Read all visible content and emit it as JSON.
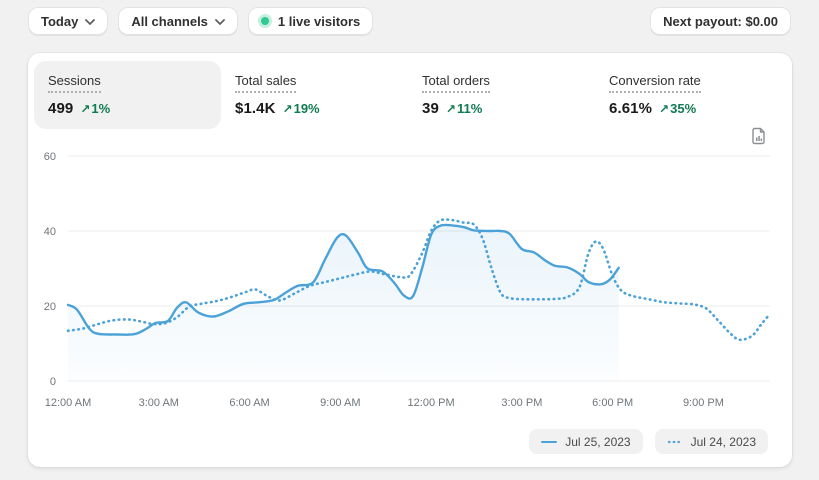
{
  "topbar": {
    "date_range_label": "Today",
    "channels_label": "All channels",
    "live_visitors_label": "1 live visitors",
    "live_dot_color": "#2fc991",
    "next_payout_label": "Next payout: $0.00"
  },
  "metrics": [
    {
      "label": "Sessions",
      "value": "499",
      "arrow": "↗",
      "delta": "1%",
      "selected": true
    },
    {
      "label": "Total sales",
      "value": "$1.4K",
      "arrow": "↗",
      "delta": "19%",
      "selected": false
    },
    {
      "label": "Total orders",
      "value": "39",
      "arrow": "↗",
      "delta": "11%",
      "selected": false
    },
    {
      "label": "Conversion rate",
      "value": "6.61%",
      "arrow": "↗",
      "delta": "35%",
      "selected": false
    }
  ],
  "colors": {
    "positive_delta": "#107a52",
    "line_blue": "#4ba2d8",
    "grid": "#ececec",
    "axis_text": "#70757a"
  },
  "chart_data": {
    "type": "line",
    "x_unit": "hour_of_day",
    "xlim": [
      0,
      23.2
    ],
    "ylim": [
      0,
      60
    ],
    "grid": true,
    "yticks": [
      {
        "value": 0,
        "label": "0"
      },
      {
        "value": 20,
        "label": "20"
      },
      {
        "value": 40,
        "label": "40"
      },
      {
        "value": 60,
        "label": "60"
      }
    ],
    "xticks": [
      {
        "hour": 0,
        "label": "12:00 AM"
      },
      {
        "hour": 3,
        "label": "3:00 AM"
      },
      {
        "hour": 6,
        "label": "6:00 AM"
      },
      {
        "hour": 9,
        "label": "9:00 AM"
      },
      {
        "hour": 12,
        "label": "12:00 PM"
      },
      {
        "hour": 15,
        "label": "3:00 PM"
      },
      {
        "hour": 18,
        "label": "6:00 PM"
      },
      {
        "hour": 21,
        "label": "9:00 PM"
      }
    ],
    "legend_position": "bottom-right",
    "series": [
      {
        "name": "Jul 25, 2023",
        "style": "solid",
        "color": "#4ba2d8",
        "area_fill": true,
        "points": [
          [
            0,
            20.3
          ],
          [
            0.3,
            19
          ],
          [
            0.7,
            14
          ],
          [
            1.0,
            12.6
          ],
          [
            1.6,
            12.4
          ],
          [
            2.2,
            12.5
          ],
          [
            2.6,
            14
          ],
          [
            2.9,
            15.5
          ],
          [
            3.3,
            16
          ],
          [
            3.6,
            19.5
          ],
          [
            3.9,
            21
          ],
          [
            4.3,
            18.3
          ],
          [
            4.8,
            17.2
          ],
          [
            5.3,
            18.6
          ],
          [
            5.8,
            20.6
          ],
          [
            6.3,
            21
          ],
          [
            6.8,
            21.6
          ],
          [
            7.2,
            23.6
          ],
          [
            7.6,
            25.4
          ],
          [
            8.1,
            26.3
          ],
          [
            8.5,
            32.5
          ],
          [
            8.9,
            38.3
          ],
          [
            9.2,
            38.7
          ],
          [
            9.6,
            34
          ],
          [
            9.9,
            30
          ],
          [
            10.4,
            29.2
          ],
          [
            10.8,
            26
          ],
          [
            11.1,
            22.8
          ],
          [
            11.4,
            22.6
          ],
          [
            11.7,
            30
          ],
          [
            12.0,
            39
          ],
          [
            12.3,
            41.4
          ],
          [
            12.7,
            41.5
          ],
          [
            13.1,
            41
          ],
          [
            13.4,
            40.2
          ],
          [
            13.9,
            40
          ],
          [
            14.3,
            40
          ],
          [
            14.6,
            39.2
          ],
          [
            15.0,
            35.2
          ],
          [
            15.4,
            34.3
          ],
          [
            15.8,
            32
          ],
          [
            16.1,
            30.7
          ],
          [
            16.5,
            30.3
          ],
          [
            16.9,
            28.6
          ],
          [
            17.2,
            26.4
          ],
          [
            17.6,
            25.8
          ],
          [
            17.9,
            27
          ],
          [
            18.2,
            30.2
          ]
        ]
      },
      {
        "name": "Jul 24, 2023",
        "style": "dotted",
        "color": "#4ba2d8",
        "area_fill": false,
        "points": [
          [
            0,
            13.4
          ],
          [
            0.5,
            14
          ],
          [
            1.0,
            15.2
          ],
          [
            1.5,
            16.2
          ],
          [
            2.0,
            16.4
          ],
          [
            2.4,
            15.9
          ],
          [
            2.8,
            15.2
          ],
          [
            3.2,
            15.4
          ],
          [
            3.6,
            17
          ],
          [
            4.0,
            19.8
          ],
          [
            4.4,
            20.6
          ],
          [
            4.9,
            21.3
          ],
          [
            5.4,
            22.4
          ],
          [
            5.9,
            23.8
          ],
          [
            6.2,
            24.4
          ],
          [
            6.6,
            22.6
          ],
          [
            7.0,
            21.5
          ],
          [
            7.5,
            23.4
          ],
          [
            8.0,
            25.4
          ],
          [
            8.5,
            26.4
          ],
          [
            9.0,
            27.4
          ],
          [
            9.5,
            28.4
          ],
          [
            10.0,
            29.2
          ],
          [
            10.5,
            28.4
          ],
          [
            11.0,
            27.7
          ],
          [
            11.3,
            28.2
          ],
          [
            11.7,
            34
          ],
          [
            12.0,
            40
          ],
          [
            12.3,
            42.8
          ],
          [
            12.7,
            42.9
          ],
          [
            13.1,
            42.2
          ],
          [
            13.4,
            41.8
          ],
          [
            13.7,
            38
          ],
          [
            14.0,
            30
          ],
          [
            14.3,
            23.5
          ],
          [
            14.6,
            22.1
          ],
          [
            15.1,
            21.8
          ],
          [
            15.6,
            21.8
          ],
          [
            16.1,
            21.9
          ],
          [
            16.5,
            22.4
          ],
          [
            16.9,
            25
          ],
          [
            17.2,
            34
          ],
          [
            17.45,
            37.2
          ],
          [
            17.7,
            35
          ],
          [
            18.0,
            28
          ],
          [
            18.3,
            24
          ],
          [
            18.7,
            22.6
          ],
          [
            19.2,
            21.8
          ],
          [
            19.7,
            21
          ],
          [
            20.2,
            20.7
          ],
          [
            20.7,
            20.4
          ],
          [
            21.1,
            19.3
          ],
          [
            21.5,
            16
          ],
          [
            21.9,
            12.6
          ],
          [
            22.2,
            11
          ],
          [
            22.6,
            12
          ],
          [
            22.9,
            15
          ],
          [
            23.2,
            17.9
          ]
        ]
      }
    ]
  }
}
